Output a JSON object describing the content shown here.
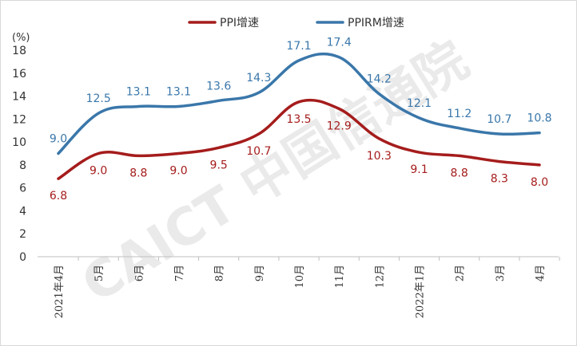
{
  "watermark": "CAICT 中国信通院",
  "chart_data": {
    "type": "line",
    "title": "",
    "unit_label": "(%)",
    "categories": [
      "2021年4月",
      "5月",
      "6月",
      "7月",
      "8月",
      "9月",
      "10月",
      "11月",
      "12月",
      "2022年1月",
      "2月",
      "3月",
      "4月"
    ],
    "ylim": [
      0,
      18
    ],
    "yticks": [
      0,
      2,
      4,
      6,
      8,
      10,
      12,
      14,
      16,
      18
    ],
    "grid": false,
    "legend_position": "top-center",
    "series": [
      {
        "name": "PPI增速",
        "color": "#a51c1c",
        "values": [
          6.8,
          9.0,
          8.8,
          9.0,
          9.5,
          10.7,
          13.5,
          12.9,
          10.3,
          9.1,
          8.8,
          8.3,
          8.0
        ],
        "labels": [
          "6.8",
          "9.0",
          "8.8",
          "9.0",
          "9.5",
          "10.7",
          "13.5",
          "12.9",
          "10.3",
          "9.1",
          "8.8",
          "8.3",
          "8.0"
        ],
        "label_position": "below"
      },
      {
        "name": "PPIRM增速",
        "color": "#3a77aa",
        "values": [
          9.0,
          12.5,
          13.1,
          13.1,
          13.6,
          14.3,
          17.1,
          17.4,
          14.2,
          12.1,
          11.2,
          10.7,
          10.8
        ],
        "labels": [
          "9.0",
          "12.5",
          "13.1",
          "13.1",
          "13.6",
          "14.3",
          "17.1",
          "17.4",
          "14.2",
          "12.1",
          "11.2",
          "10.7",
          "10.8"
        ],
        "label_position": "above"
      }
    ]
  }
}
